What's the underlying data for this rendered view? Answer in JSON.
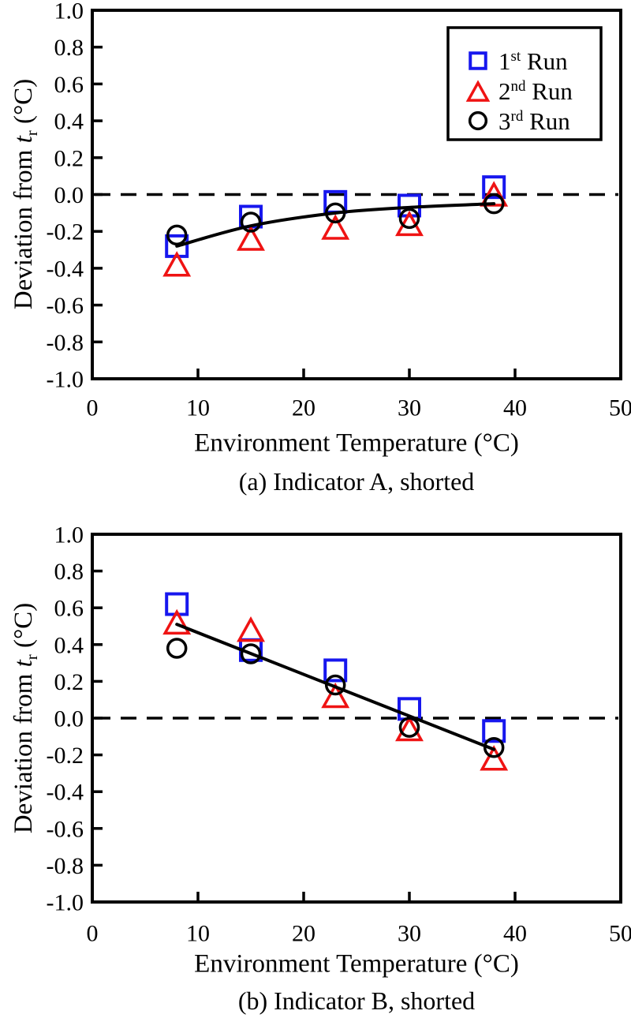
{
  "figure": {
    "background": "#ffffff",
    "axis_color": "#000000",
    "trend_color": "#000000",
    "x_tick_labels": [
      "0",
      "10",
      "20",
      "30",
      "40",
      "50"
    ],
    "x_tick_label_values": [
      0,
      10,
      20,
      30,
      40,
      50
    ],
    "x_inner_tick_values": [
      10,
      20,
      30,
      40
    ],
    "y_tick_labels": [
      "1.0",
      "0.8",
      "0.6",
      "0.4",
      "0.2",
      "0.0",
      "-0.2",
      "-0.4",
      "-0.6",
      "-0.8",
      "-1.0"
    ],
    "y_tick_label_values": [
      1.0,
      0.8,
      0.6,
      0.4,
      0.2,
      0.0,
      -0.2,
      -0.4,
      -0.6,
      -0.8,
      -1.0
    ],
    "y_inner_tick_values": [
      0.8,
      0.6,
      0.4,
      0.2,
      0.0,
      -0.2,
      -0.4,
      -0.6,
      -0.8
    ],
    "ylabel_parts": {
      "prefix": "Deviation from ",
      "var": "t",
      "sub": "r",
      "suffix": " (°C)"
    },
    "legend": {
      "items": [
        {
          "marker": "square",
          "color": "#1717ee",
          "label_num": "1",
          "label_sup": "st",
          "label_rest": " Run",
          "full_label": "1st Run"
        },
        {
          "marker": "triangle",
          "color": "#ef1313",
          "label_num": "2",
          "label_sup": "nd",
          "label_rest": " Run",
          "full_label": "2nd Run"
        },
        {
          "marker": "circle",
          "color": "#000000",
          "label_num": "3",
          "label_sup": "rd",
          "label_rest": " Run",
          "full_label": "3rd Run"
        }
      ]
    }
  },
  "chart_data": [
    {
      "id": "a",
      "type": "scatter",
      "caption": "(a) Indicator A, shorted",
      "xlabel": "Environment Temperature (°C)",
      "ylabel": "Deviation from tr (°C)",
      "xlim": [
        0,
        50
      ],
      "ylim": [
        -1.0,
        1.0
      ],
      "grid": false,
      "legend_visible": true,
      "legend_position": "top-right",
      "x": [
        8,
        15,
        23,
        30,
        38
      ],
      "series": [
        {
          "name": "1st Run",
          "marker": "square",
          "color": "#1717ee",
          "values": [
            -0.28,
            -0.12,
            -0.04,
            -0.06,
            0.04
          ]
        },
        {
          "name": "2nd Run",
          "marker": "triangle",
          "color": "#ef1313",
          "values": [
            -0.38,
            -0.24,
            -0.18,
            -0.16,
            0.0
          ]
        },
        {
          "name": "3rd Run",
          "marker": "circle",
          "color": "#000000",
          "values": [
            -0.22,
            -0.15,
            -0.1,
            -0.13,
            -0.05
          ]
        }
      ],
      "trend_line": {
        "shape": "curve",
        "x": [
          8,
          15,
          23,
          30,
          38
        ],
        "y": [
          -0.28,
          -0.17,
          -0.1,
          -0.07,
          -0.05
        ]
      },
      "zero_dashed_line": 0.0
    },
    {
      "id": "b",
      "type": "scatter",
      "caption": "(b) Indicator B, shorted",
      "xlabel": "Environment Temperature (°C)",
      "ylabel": "Deviation from tr (°C)",
      "xlim": [
        0,
        50
      ],
      "ylim": [
        -1.0,
        1.0
      ],
      "grid": false,
      "legend_visible": false,
      "x": [
        8,
        15,
        23,
        30,
        38
      ],
      "series": [
        {
          "name": "1st Run",
          "marker": "square",
          "color": "#1717ee",
          "values": [
            0.62,
            0.37,
            0.26,
            0.05,
            -0.07
          ]
        },
        {
          "name": "2nd Run",
          "marker": "triangle",
          "color": "#ef1313",
          "values": [
            0.52,
            0.48,
            0.12,
            -0.06,
            -0.22
          ]
        },
        {
          "name": "3rd Run",
          "marker": "circle",
          "color": "#000000",
          "values": [
            0.38,
            0.35,
            0.18,
            -0.05,
            -0.16
          ]
        }
      ],
      "trend_line": {
        "shape": "line",
        "x": [
          8,
          38
        ],
        "y": [
          0.51,
          -0.17
        ]
      },
      "zero_dashed_line": 0.0
    }
  ]
}
